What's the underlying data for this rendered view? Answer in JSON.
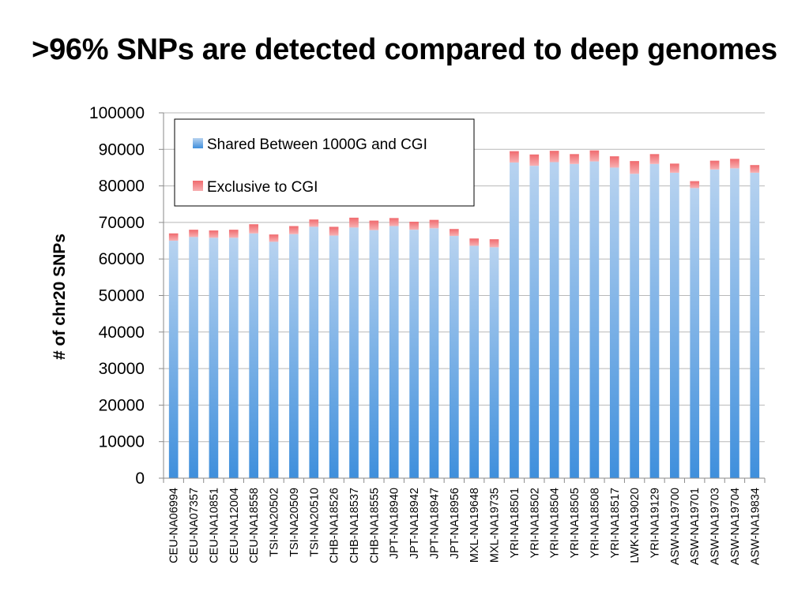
{
  "slide": {
    "title": ">96% SNPs are detected compared to deep genomes"
  },
  "chart_data": {
    "type": "bar",
    "stacked": true,
    "title": "",
    "xlabel": "",
    "ylabel": "# of chr20 SNPs",
    "ylim": [
      0,
      100000
    ],
    "yticks": [
      0,
      10000,
      20000,
      30000,
      40000,
      50000,
      60000,
      70000,
      80000,
      90000,
      100000
    ],
    "grid": "horizontal",
    "legend_position": "top-left",
    "categories": [
      "CEU-NA06994",
      "CEU-NA07357",
      "CEU-NA10851",
      "CEU-NA12004",
      "CEU-NA18558",
      "TSI-NA20502",
      "TSI-NA20509",
      "TSI-NA20510",
      "CHB-NA18526",
      "CHB-NA18537",
      "CHB-NA18555",
      "JPT-NA18940",
      "JPT-NA18942",
      "JPT-NA18947",
      "JPT-NA18956",
      "MXL-NA19648",
      "MXL-NA19735",
      "YRI-NA18501",
      "YRI-NA18502",
      "YRI-NA18504",
      "YRI-NA18505",
      "YRI-NA18508",
      "YRI-NA18517",
      "LWK-NA19020",
      "YRI-NA19129",
      "ASW-NA19700",
      "ASW-NA19701",
      "ASW-NA19703",
      "ASW-NA19704",
      "ASW-NA19834"
    ],
    "series": [
      {
        "name": "Shared Between 1000G and CGI",
        "color_top": "#b8d3f0",
        "color_bottom": "#3f8fdc",
        "values": [
          65000,
          66000,
          65800,
          65800,
          67000,
          64700,
          66800,
          68800,
          66400,
          68600,
          67900,
          69000,
          68000,
          68400,
          66300,
          63600,
          63200,
          86400,
          85500,
          86500,
          86000,
          86700,
          85000,
          83300,
          86000,
          83600,
          79400,
          84500,
          84800,
          83600
        ]
      },
      {
        "name": "Exclusive to CGI",
        "color_top": "#f06a6e",
        "color_bottom": "#f7b0b2",
        "values": [
          2000,
          2000,
          2000,
          2200,
          2500,
          2000,
          2200,
          2000,
          2400,
          2700,
          2600,
          2200,
          2200,
          2300,
          1900,
          2000,
          2200,
          3100,
          3100,
          3100,
          2700,
          3000,
          3100,
          3500,
          2700,
          2500,
          1900,
          2400,
          2600,
          2100
        ]
      }
    ]
  }
}
